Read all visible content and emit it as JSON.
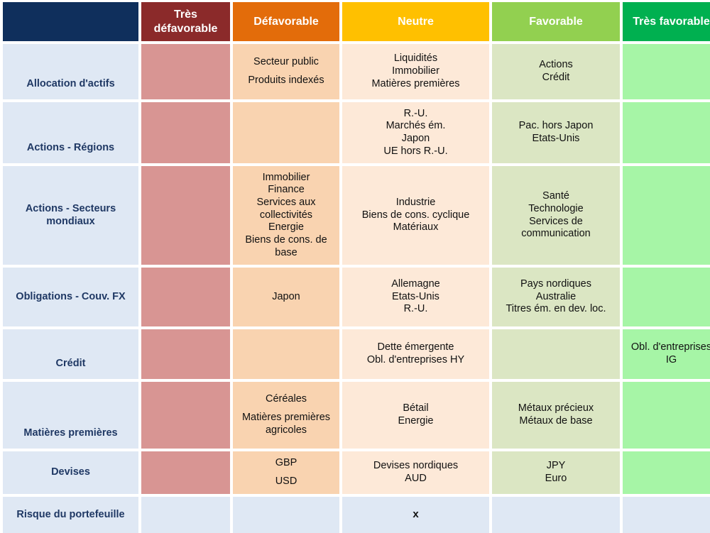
{
  "headers": {
    "tres_defavorable": "Très défavorable",
    "defavorable": "Défavorable",
    "neutre": "Neutre",
    "favorable": "Favorable",
    "tres_favorable": "Très favorable"
  },
  "rows": [
    {
      "label": "Allocation d'actifs",
      "defavorable": [
        "Secteur public",
        "Produits indexés"
      ],
      "neutre": [
        "Liquidités",
        "Immobilier",
        "Matières premières"
      ],
      "favorable": [
        "Actions",
        "Crédit"
      ]
    },
    {
      "label": "Actions - Régions",
      "neutre": [
        "R.-U.",
        "Marchés ém.",
        "Japon",
        "UE hors R.-U."
      ],
      "favorable": [
        "Pac. hors Japon",
        "Etats-Unis"
      ]
    },
    {
      "label": "Actions - Secteurs mondiaux",
      "defavorable": [
        "Immobilier",
        "Finance",
        "Services aux collectivités",
        "Energie",
        "Biens de cons. de base"
      ],
      "neutre": [
        "Industrie",
        "Biens de cons. cyclique",
        "Matériaux"
      ],
      "favorable": [
        "Santé",
        "Technologie",
        "Services de communication"
      ]
    },
    {
      "label": "Obligations - Couv. FX",
      "defavorable": [
        "Japon"
      ],
      "neutre": [
        "Allemagne",
        "Etats-Unis",
        "R.-U."
      ],
      "favorable": [
        "Pays nordiques",
        "Australie",
        "Titres ém. en dev. loc."
      ]
    },
    {
      "label": "Crédit",
      "neutre": [
        "Dette émergente",
        "Obl. d'entreprises HY"
      ],
      "tres_favorable": [
        "Obl. d'entreprises IG"
      ]
    },
    {
      "label": "Matières premières",
      "defavorable": [
        "Céréales",
        "Matières premières agricoles"
      ],
      "neutre": [
        "Bétail",
        "Energie"
      ],
      "favorable": [
        "Métaux précieux",
        "Métaux de base"
      ]
    },
    {
      "label": "Devises",
      "defavorable": [
        "GBP",
        "USD"
      ],
      "neutre": [
        "Devises nordiques",
        "AUD"
      ],
      "favorable": [
        "JPY",
        "Euro"
      ]
    },
    {
      "label": "Risque du portefeuille",
      "neutre": [
        "x"
      ]
    }
  ],
  "colors": {
    "header_label_bg": "#0f2f5c",
    "tres_defavorable": "#8b2a2a",
    "defavorable": "#e36c0a",
    "neutre": "#ffc000",
    "favorable": "#92d050",
    "tres_favorable": "#00b050"
  }
}
